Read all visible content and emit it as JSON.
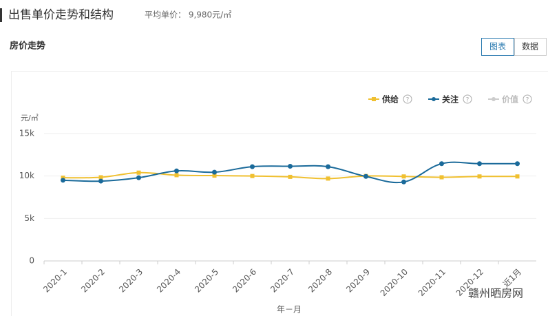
{
  "header": {
    "title": "出售单价走势和结构",
    "summary": "平均单价： 9,980元/㎡"
  },
  "section_title": "房价走势",
  "tabs": [
    "图表",
    "数据"
  ],
  "watermark": "赣州晒房网",
  "chart_data": {
    "type": "line",
    "y_unit": "元/㎡",
    "x_label": "年－月",
    "categories": [
      "2020-1",
      "2020-2",
      "2020-3",
      "2020-4",
      "2020-5",
      "2020-6",
      "2020-7",
      "2020-8",
      "2020-9",
      "2020-10",
      "2020-11",
      "2020-12",
      "近1月"
    ],
    "series": [
      {
        "name": "供给",
        "color": "#f0c030",
        "values": [
          9800,
          9850,
          10400,
          10100,
          10050,
          10000,
          9900,
          9700,
          10000,
          9950,
          9850,
          9950,
          9950
        ]
      },
      {
        "name": "关注",
        "color": "#1a6a9a",
        "values": [
          9500,
          9400,
          9800,
          10600,
          10450,
          11100,
          11150,
          11100,
          9950,
          9300,
          11450,
          11450,
          11450
        ]
      },
      {
        "name": "价值",
        "color": "#cccccc",
        "values": [
          null,
          null,
          null,
          null,
          null,
          null,
          null,
          null,
          null,
          null,
          null,
          null,
          null
        ]
      }
    ],
    "ylim": [
      0,
      15000
    ],
    "yticks": [
      0,
      {
        "value": 5000,
        "label": "5k"
      },
      {
        "value": 10000,
        "label": "10k"
      },
      {
        "value": 15000,
        "label": "15k"
      }
    ],
    "grid": true
  }
}
